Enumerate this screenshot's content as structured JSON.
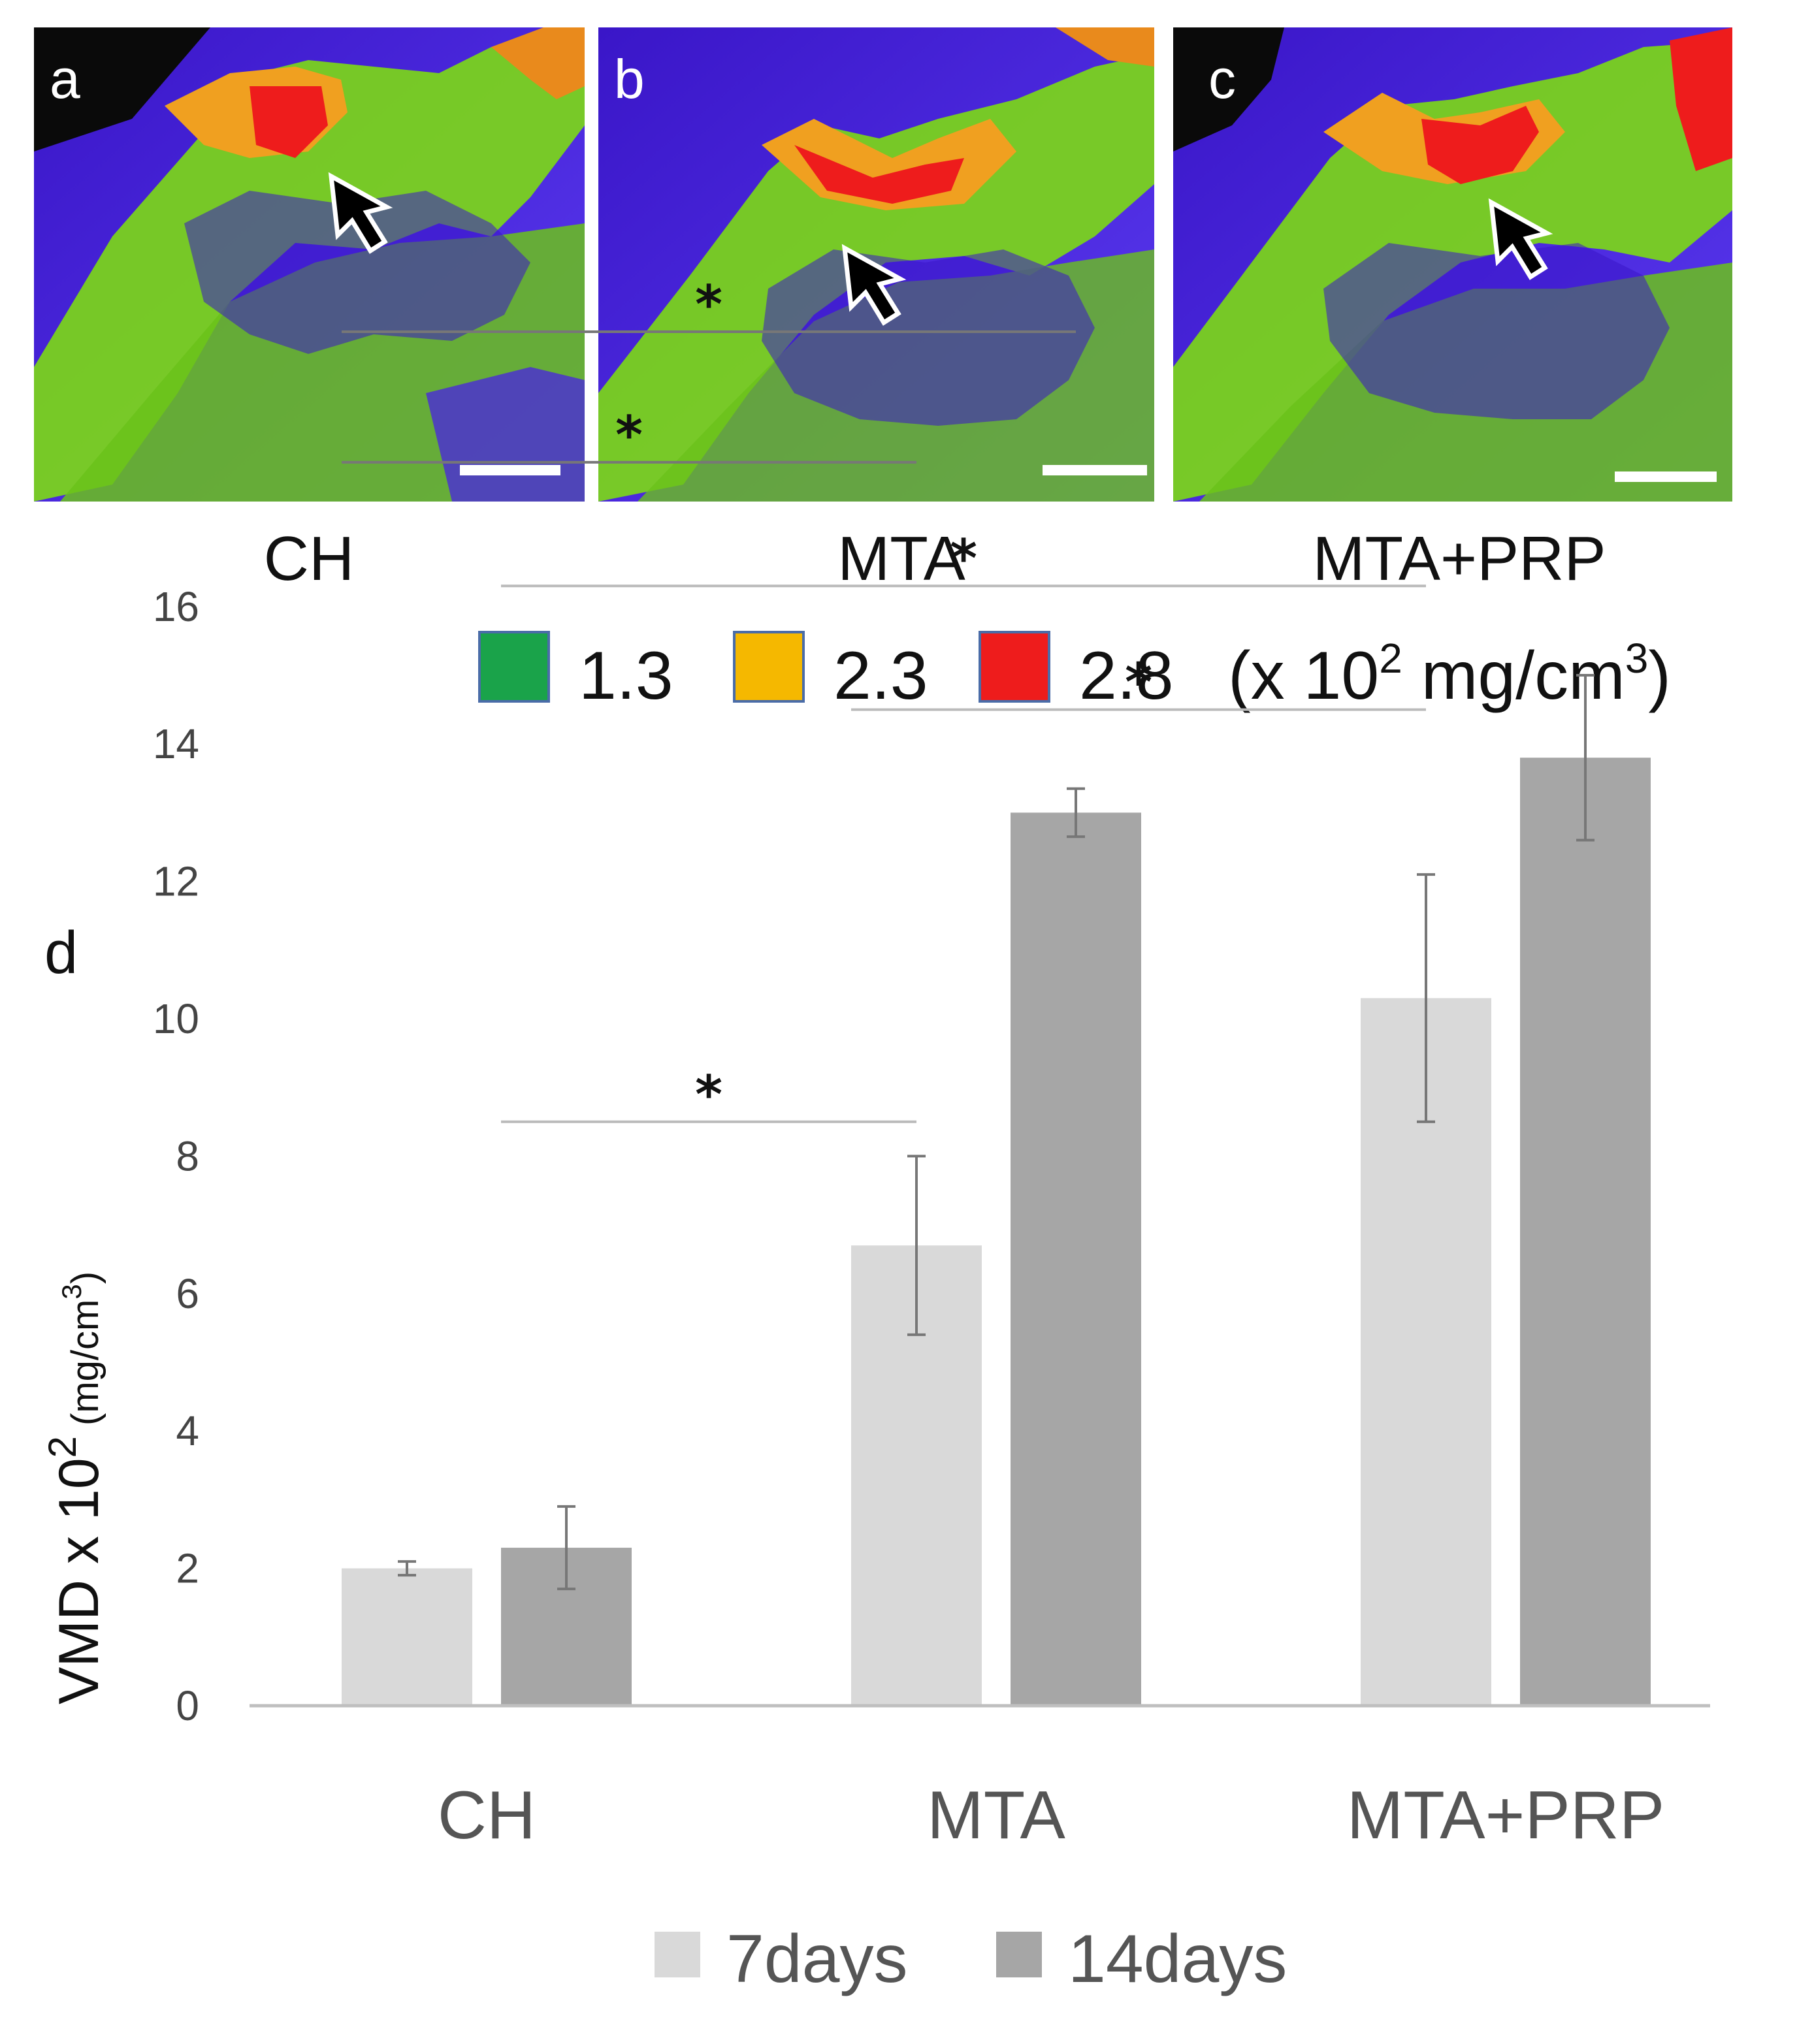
{
  "panels": [
    {
      "letter": "a",
      "caption": "CH"
    },
    {
      "letter": "b",
      "caption": "MTA"
    },
    {
      "letter": "c",
      "caption": "MTA+PRP"
    }
  ],
  "density_legend": {
    "items": [
      {
        "value": "1.3",
        "color": "#1aa34a"
      },
      {
        "value": "2.3",
        "color": "#f5b800"
      },
      {
        "value": "2.8",
        "color": "#ee1c1c"
      }
    ],
    "unit_prefix": "(x 10",
    "unit_exp": "2",
    "unit_mid": " mg/cm",
    "unit_exp2": "3",
    "unit_suffix": ")"
  },
  "chart_data": {
    "type": "bar",
    "panel_letter": "d",
    "categories": [
      "CH",
      "MTA",
      "MTA+PRP"
    ],
    "series": [
      {
        "name": "7days",
        "color": "#d9d9d9",
        "values": [
          2.0,
          6.7,
          10.3
        ],
        "errors": [
          0.1,
          1.3,
          1.8
        ]
      },
      {
        "name": "14days",
        "color": "#a6a6a6",
        "values": [
          2.3,
          13.0,
          13.8
        ],
        "errors": [
          0.6,
          0.35,
          1.2
        ]
      }
    ],
    "ylim": [
      0,
      16
    ],
    "yticks": [
      0,
      2,
      4,
      6,
      8,
      10,
      12,
      14,
      16
    ],
    "ylabel": {
      "main": "VMD x 10",
      "exp": "2",
      "unit": " (mg/cm",
      "unit_exp": "3",
      "unit_end": ")"
    },
    "significance": [
      {
        "from": [
          0,
          "7days"
        ],
        "to": [
          1,
          "14days"
        ],
        "label": "*",
        "y": 20.0
      },
      {
        "from": [
          0,
          "7days"
        ],
        "to": [
          1,
          "7days"
        ],
        "label": "*",
        "y": 18.1
      },
      {
        "from": [
          0,
          "14days"
        ],
        "to": [
          2,
          "7days"
        ],
        "label": "*",
        "y": 16.3
      },
      {
        "from": [
          1,
          "7days"
        ],
        "to": [
          2,
          "7days"
        ],
        "label": "*",
        "y": 14.5
      },
      {
        "from": [
          0,
          "14days"
        ],
        "to": [
          1,
          "7days"
        ],
        "label": "*",
        "y": 8.5
      }
    ]
  }
}
